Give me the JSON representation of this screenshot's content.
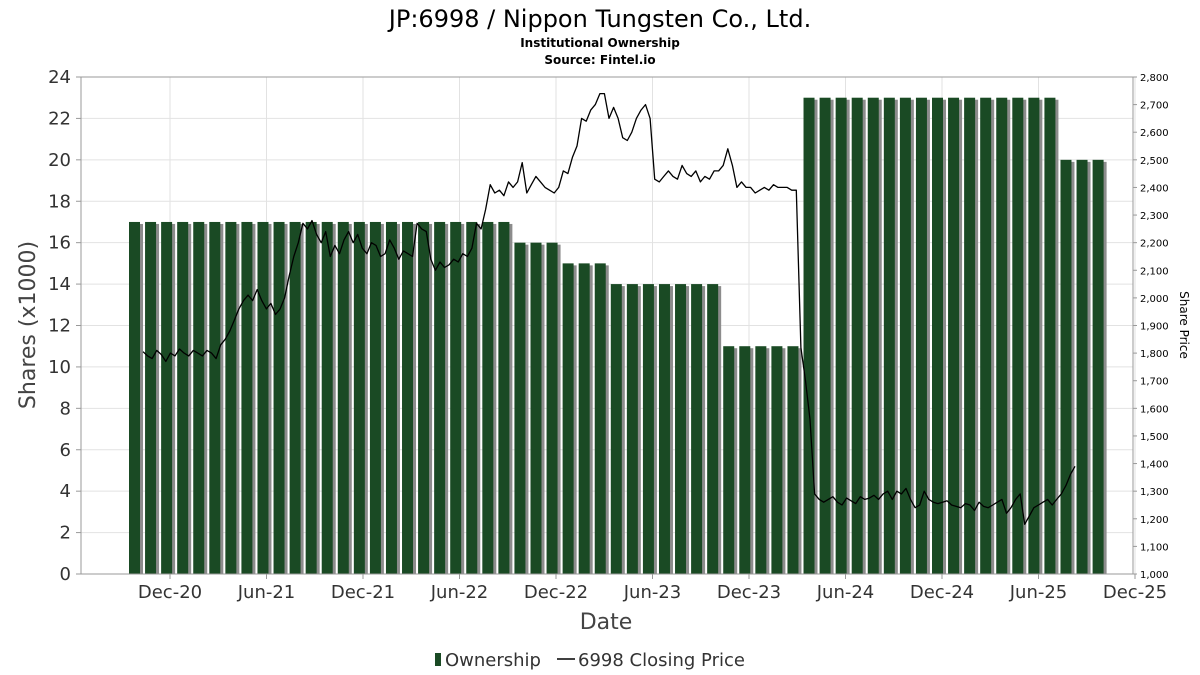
{
  "chart_data": {
    "type": "bar",
    "title": "JP:6998 / Nippon Tungsten Co., Ltd.",
    "subtitle_1": "Institutional Ownership",
    "subtitle_2": "Source: Fintel.io",
    "xlabel": "Date",
    "ylabel": "Shares (x1000)",
    "y2label": "Share Price",
    "ylim": [
      0,
      24
    ],
    "y2lim": [
      1000,
      2800
    ],
    "x_ticks": [
      "Dec-20",
      "Jun-21",
      "Dec-21",
      "Jun-22",
      "Dec-22",
      "Jun-23",
      "Dec-23",
      "Jun-24",
      "Dec-24",
      "Jun-25",
      "Dec-25"
    ],
    "y_ticks": [
      0,
      2,
      4,
      6,
      8,
      10,
      12,
      14,
      16,
      18,
      20,
      22,
      24
    ],
    "y2_ticks": [
      "1,000",
      "1,100",
      "1,200",
      "1,300",
      "1,400",
      "1,500",
      "1,600",
      "1,700",
      "1,800",
      "1,900",
      "2,000",
      "2,100",
      "2,200",
      "2,300",
      "2,400",
      "2,500",
      "2,600",
      "2,700",
      "2,800"
    ],
    "grid": true,
    "legend_position": "bottom-center",
    "series": [
      {
        "name": "Ownership",
        "type": "bar",
        "color": "#1a4a24",
        "values": [
          17,
          17,
          17,
          17,
          17,
          17,
          17,
          17,
          17,
          17,
          17,
          17,
          17,
          17,
          17,
          17,
          17,
          17,
          17,
          17,
          17,
          17,
          17,
          17,
          16,
          16,
          16,
          15,
          15,
          15,
          14,
          14,
          14,
          14,
          14,
          14,
          14,
          11,
          11,
          11,
          11,
          11,
          23,
          23,
          23,
          23,
          23,
          23,
          23,
          23,
          23,
          23,
          23,
          23,
          23,
          23,
          23,
          23,
          20,
          20,
          20
        ]
      },
      {
        "name": "6998 Closing Price",
        "type": "line",
        "color": "#000000",
        "values": [
          1805,
          1790,
          1780,
          1810,
          1795,
          1770,
          1800,
          1790,
          1815,
          1800,
          1790,
          1810,
          1800,
          1790,
          1810,
          1800,
          1780,
          1830,
          1850,
          1880,
          1920,
          1960,
          1990,
          2010,
          1990,
          2030,
          1990,
          1960,
          1980,
          1940,
          1960,
          2000,
          2080,
          2150,
          2200,
          2270,
          2250,
          2280,
          2230,
          2200,
          2240,
          2150,
          2190,
          2160,
          2210,
          2240,
          2200,
          2230,
          2180,
          2160,
          2200,
          2190,
          2150,
          2160,
          2210,
          2180,
          2140,
          2170,
          2160,
          2150,
          2270,
          2250,
          2240,
          2140,
          2100,
          2130,
          2110,
          2120,
          2140,
          2130,
          2160,
          2150,
          2180,
          2270,
          2250,
          2320,
          2410,
          2380,
          2390,
          2370,
          2420,
          2400,
          2420,
          2490,
          2380,
          2410,
          2440,
          2420,
          2400,
          2390,
          2380,
          2400,
          2460,
          2450,
          2510,
          2550,
          2650,
          2640,
          2680,
          2700,
          2740,
          2740,
          2650,
          2690,
          2650,
          2580,
          2570,
          2600,
          2650,
          2680,
          2700,
          2650,
          2430,
          2420,
          2440,
          2460,
          2440,
          2430,
          2480,
          2450,
          2440,
          2460,
          2420,
          2440,
          2430,
          2460,
          2460,
          2480,
          2540,
          2480,
          2400,
          2420,
          2400,
          2400,
          2380,
          2390,
          2400,
          2390,
          2410,
          2400,
          2400,
          2400,
          2390,
          2390,
          1820,
          1700,
          1560,
          1290,
          1270,
          1260,
          1270,
          1280,
          1260,
          1250,
          1275,
          1265,
          1255,
          1280,
          1270,
          1275,
          1285,
          1270,
          1290,
          1300,
          1270,
          1300,
          1290,
          1310,
          1270,
          1240,
          1250,
          1300,
          1270,
          1260,
          1255,
          1260,
          1265,
          1250,
          1245,
          1240,
          1255,
          1250,
          1230,
          1260,
          1245,
          1240,
          1250,
          1260,
          1270,
          1220,
          1240,
          1270,
          1290,
          1180,
          1210,
          1240,
          1250,
          1260,
          1270,
          1250,
          1270,
          1290,
          1320,
          1360,
          1390
        ]
      }
    ]
  },
  "legend": {
    "ownership_label": "Ownership",
    "price_label": "6998 Closing Price"
  }
}
